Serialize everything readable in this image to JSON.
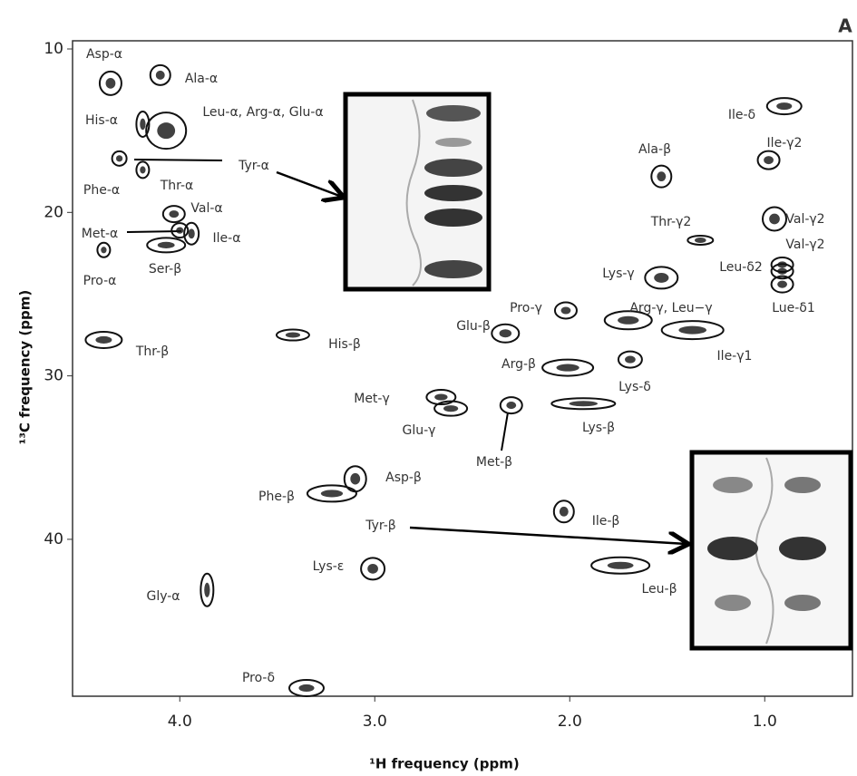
{
  "chart_data": {
    "type": "scatter",
    "panel_label": "A",
    "x_label": "¹H frequency (ppm)",
    "y_label": "¹³C frequency (ppm)",
    "xlim": [
      4.55,
      0.55
    ],
    "ylim": [
      9.5,
      49.6
    ],
    "xticks": [
      {
        "value": 4,
        "label": "4.0"
      },
      {
        "value": 3,
        "label": "3.0"
      },
      {
        "value": 2,
        "label": "2.0"
      },
      {
        "value": 1,
        "label": "1.0"
      }
    ],
    "yticks": [
      10,
      20,
      30,
      40
    ],
    "color": "#111111",
    "labels": [
      "Asp-α",
      "Ala-α",
      "His-α",
      "Leu-α, Arg-α, Glu-α",
      "Phe-α",
      "Thr-α",
      "Met-α",
      "Val-α",
      "Ile-α",
      "Ser-β",
      "Pro-α",
      "Thr-β",
      "His-β",
      "Met-γ",
      "Glu-γ",
      "Met-β",
      "Lys-β",
      "Arg-β",
      "Lys-δ",
      "Glu-β",
      "Pro-γ",
      "Arg-γ, Leu−γ",
      "Ile-γ1",
      "Lys-γ",
      "Ala-β",
      "Thr-γ2",
      "Ile-δ",
      "Ile-γ2",
      "Val-γ2",
      "Val-γ2",
      "Leu-δ2",
      "Lue-δ1",
      "Asp-β",
      "Phe-β",
      "Ile-β",
      "Lys-ε",
      "Leu-β",
      "Gly-α",
      "Pro-δ"
    ],
    "x": [
      4.355,
      4.1,
      4.19,
      4.07,
      4.31,
      4.19,
      4.0,
      4.03,
      3.94,
      4.07,
      4.39,
      4.39,
      3.42,
      2.66,
      2.61,
      2.3,
      1.93,
      2.01,
      1.69,
      2.33,
      2.02,
      1.7,
      1.37,
      1.53,
      1.53,
      1.33,
      0.9,
      0.98,
      0.95,
      0.91,
      0.91,
      0.91,
      3.1,
      3.22,
      2.03,
      3.01,
      1.74,
      3.86,
      3.35
    ],
    "values": [
      12.1,
      11.6,
      14.6,
      15.0,
      16.7,
      17.4,
      21.1,
      20.1,
      21.3,
      22.0,
      22.3,
      27.8,
      27.5,
      31.3,
      32.0,
      31.8,
      31.7,
      29.5,
      29.0,
      27.4,
      26.0,
      26.6,
      27.2,
      24.0,
      17.8,
      21.7,
      13.5,
      16.8,
      20.4,
      23.2,
      23.6,
      24.4,
      36.3,
      37.2,
      38.3,
      41.8,
      41.6,
      43.1,
      49.1
    ],
    "annotations": [
      "Tyr-α",
      "Tyr-β"
    ]
  }
}
